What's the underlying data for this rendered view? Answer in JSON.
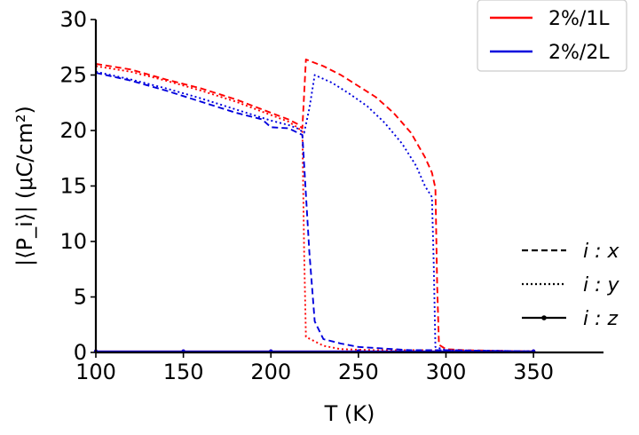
{
  "chart_data": {
    "type": "line",
    "xlabel": "T (K)",
    "ylabel": "|⟨P_i⟩| (μC/cm²)",
    "xlim": [
      100,
      390
    ],
    "ylim": [
      0,
      30
    ],
    "xticks": [
      100,
      150,
      200,
      250,
      300,
      350
    ],
    "yticks": [
      0,
      5,
      10,
      15,
      20,
      25,
      30
    ],
    "legend_series": {
      "placement": "top-right",
      "entries": [
        {
          "label": "2%/1L",
          "color": "#ff0000"
        },
        {
          "label": "2%/2L",
          "color": "#0000dd"
        }
      ]
    },
    "legend_components": {
      "placement": "lower-right",
      "entries": [
        {
          "label": "i : x",
          "style": "dashed"
        },
        {
          "label": "i : y",
          "style": "dotted"
        },
        {
          "label": "i : z",
          "style": "solid-marker"
        }
      ]
    },
    "series": [
      {
        "legend": "2%/1L",
        "component": "x",
        "color": "#ff0000",
        "style": "dashed",
        "points": [
          [
            100,
            26.0
          ],
          [
            120,
            25.5
          ],
          [
            140,
            24.6
          ],
          [
            160,
            23.8
          ],
          [
            180,
            22.8
          ],
          [
            200,
            21.6
          ],
          [
            210,
            21.0
          ],
          [
            215,
            20.6
          ],
          [
            218,
            20.2
          ],
          [
            220,
            26.4
          ],
          [
            230,
            25.8
          ],
          [
            240,
            25.0
          ],
          [
            250,
            24.0
          ],
          [
            260,
            23.0
          ],
          [
            270,
            21.6
          ],
          [
            280,
            19.8
          ],
          [
            288,
            17.6
          ],
          [
            292,
            16.2
          ],
          [
            294,
            14.8
          ],
          [
            295,
            6.0
          ],
          [
            296,
            0.7
          ],
          [
            300,
            0.3
          ],
          [
            310,
            0.2
          ],
          [
            350,
            0.1
          ]
        ]
      },
      {
        "legend": "2%/1L",
        "component": "y",
        "color": "#ff0000",
        "style": "dotted",
        "points": [
          [
            100,
            25.8
          ],
          [
            120,
            25.3
          ],
          [
            140,
            24.5
          ],
          [
            160,
            23.6
          ],
          [
            180,
            22.6
          ],
          [
            200,
            21.4
          ],
          [
            210,
            20.8
          ],
          [
            215,
            20.3
          ],
          [
            218,
            19.9
          ],
          [
            219,
            9.0
          ],
          [
            220,
            1.4
          ],
          [
            225,
            1.0
          ],
          [
            230,
            0.6
          ],
          [
            240,
            0.3
          ],
          [
            260,
            0.2
          ],
          [
            280,
            0.2
          ],
          [
            300,
            0.2
          ],
          [
            350,
            0.1
          ]
        ]
      },
      {
        "legend": "2%/1L",
        "component": "z",
        "color": "#ff0000",
        "style": "solid-marker",
        "points": [
          [
            100,
            0.1
          ],
          [
            150,
            0.1
          ],
          [
            200,
            0.1
          ],
          [
            250,
            0.1
          ],
          [
            300,
            0.1
          ],
          [
            350,
            0.1
          ]
        ]
      },
      {
        "legend": "2%/2L",
        "component": "x",
        "color": "#0000dd",
        "style": "dashed",
        "points": [
          [
            100,
            25.2
          ],
          [
            120,
            24.5
          ],
          [
            140,
            23.6
          ],
          [
            160,
            22.6
          ],
          [
            180,
            21.6
          ],
          [
            195,
            21.0
          ],
          [
            200,
            20.3
          ],
          [
            210,
            20.2
          ],
          [
            218,
            19.6
          ],
          [
            222,
            9.0
          ],
          [
            225,
            2.8
          ],
          [
            230,
            1.2
          ],
          [
            240,
            0.8
          ],
          [
            250,
            0.5
          ],
          [
            260,
            0.4
          ],
          [
            270,
            0.3
          ],
          [
            280,
            0.2
          ],
          [
            300,
            0.2
          ],
          [
            350,
            0.1
          ]
        ]
      },
      {
        "legend": "2%/2L",
        "component": "y",
        "color": "#0000dd",
        "style": "dotted",
        "points": [
          [
            100,
            25.3
          ],
          [
            120,
            24.6
          ],
          [
            140,
            23.8
          ],
          [
            160,
            22.9
          ],
          [
            180,
            21.9
          ],
          [
            200,
            20.9
          ],
          [
            210,
            20.5
          ],
          [
            215,
            20.2
          ],
          [
            219,
            19.8
          ],
          [
            222,
            22.0
          ],
          [
            225,
            25.0
          ],
          [
            235,
            24.3
          ],
          [
            245,
            23.3
          ],
          [
            255,
            22.2
          ],
          [
            265,
            20.7
          ],
          [
            275,
            18.8
          ],
          [
            283,
            16.8
          ],
          [
            288,
            15.0
          ],
          [
            292,
            14.0
          ],
          [
            293,
            8.0
          ],
          [
            294,
            0.5
          ],
          [
            300,
            0.2
          ],
          [
            350,
            0.1
          ]
        ]
      },
      {
        "legend": "2%/2L",
        "component": "z",
        "color": "#0000dd",
        "style": "solid-marker",
        "points": [
          [
            100,
            0.1
          ],
          [
            150,
            0.1
          ],
          [
            200,
            0.1
          ],
          [
            250,
            0.1
          ],
          [
            300,
            0.1
          ],
          [
            350,
            0.1
          ]
        ]
      }
    ]
  }
}
